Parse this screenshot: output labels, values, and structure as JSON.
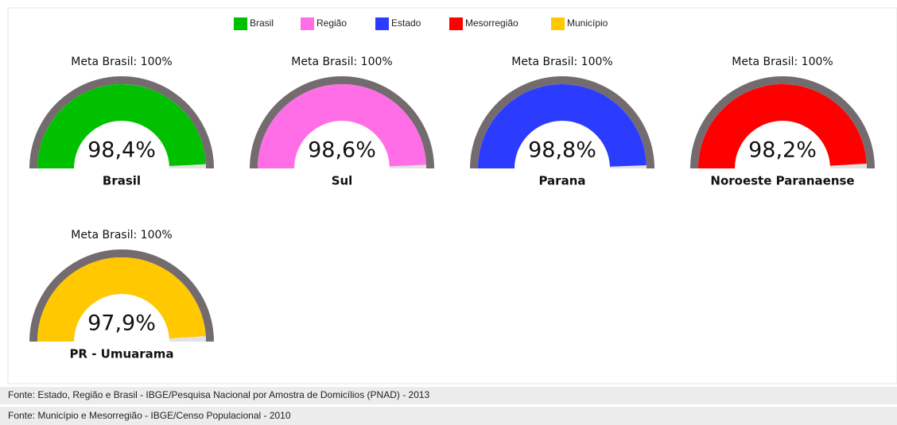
{
  "chart_data": {
    "type": "gauge",
    "ylim": [
      0,
      100
    ],
    "series": [
      {
        "name": "Brasil",
        "color": "#00c000",
        "title": "Meta Brasil: 100%",
        "label": "Brasil",
        "value": 98.4,
        "value_label": "98,4%"
      },
      {
        "name": "Região",
        "color": "#ff6ee6",
        "title": "Meta Brasil: 100%",
        "label": "Sul",
        "value": 98.6,
        "value_label": "98,6%"
      },
      {
        "name": "Estado",
        "color": "#2b3cff",
        "title": "Meta Brasil: 100%",
        "label": "Parana",
        "value": 98.8,
        "value_label": "98,8%"
      },
      {
        "name": "Mesorregião",
        "color": "#ff0000",
        "title": "Meta Brasil: 100%",
        "label": "Noroeste Paranaense",
        "value": 98.2,
        "value_label": "98,2%"
      },
      {
        "name": "Município",
        "color": "#ffc800",
        "title": "Meta Brasil: 100%",
        "label": "PR - Umuarama",
        "value": 97.9,
        "value_label": "97,9%"
      }
    ]
  },
  "footer": [
    "Fonte: Estado, Região e Brasil - IBGE/Pesquisa Nacional por Amostra de Domicílios (PNAD) - 2013",
    "Fonte: Município e Mesorregião - IBGE/Censo Populacional - 2010"
  ]
}
